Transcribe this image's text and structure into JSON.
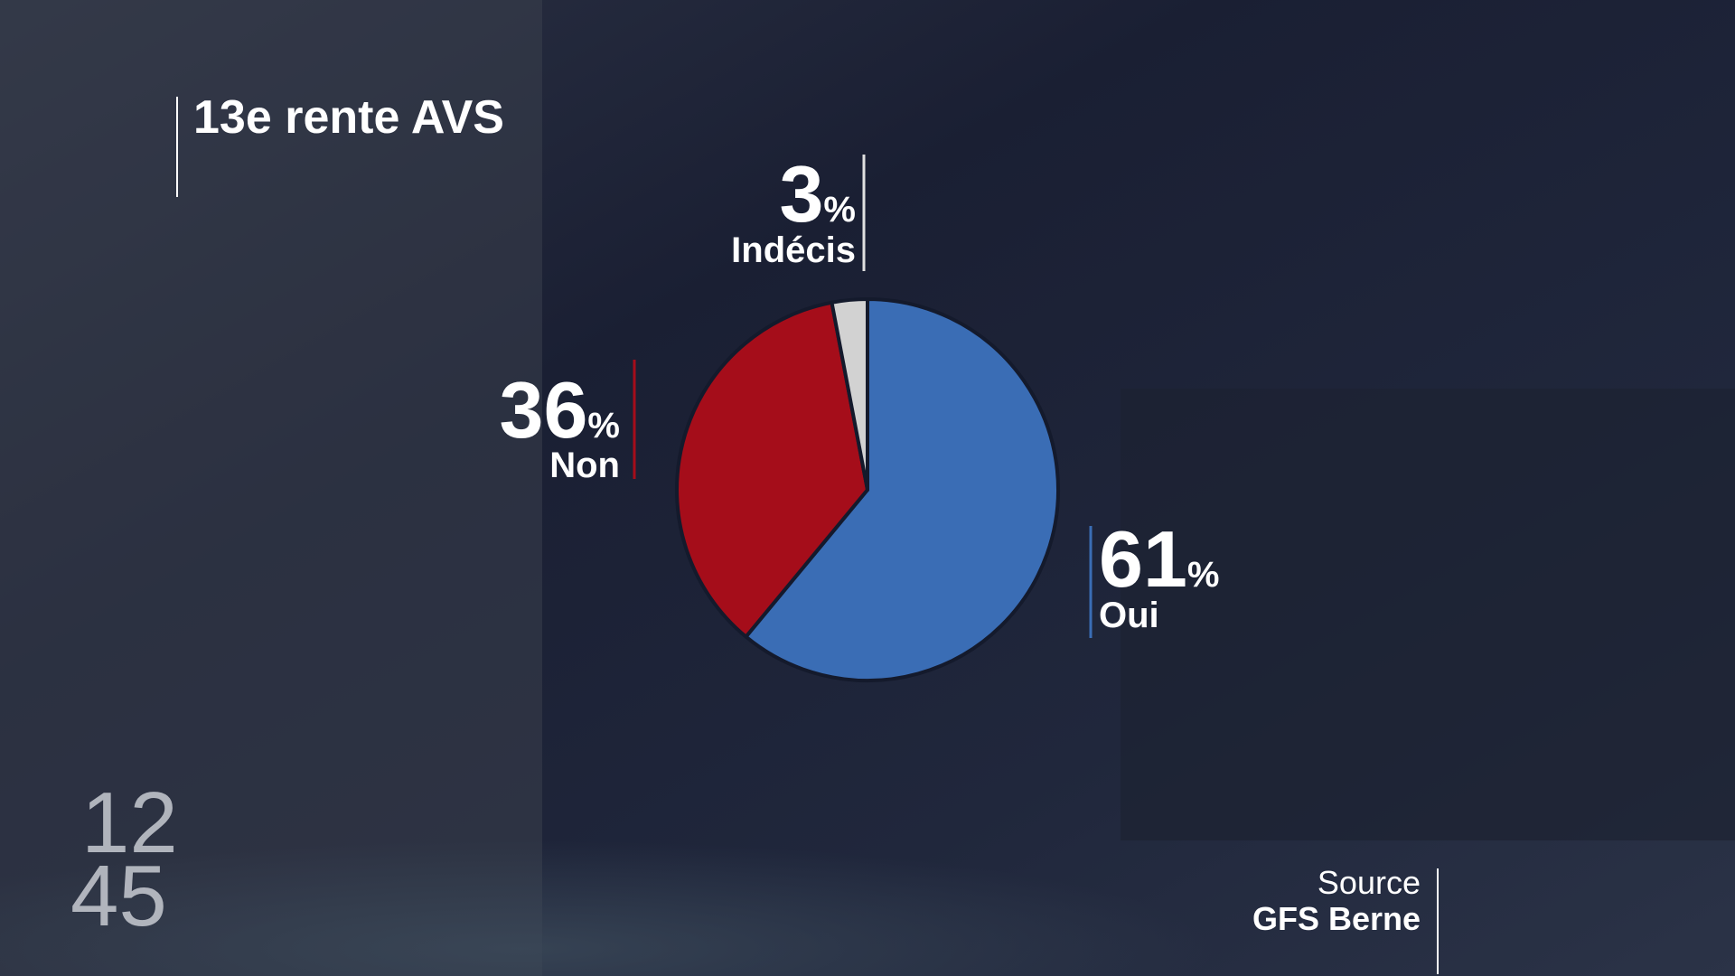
{
  "chart_data": {
    "type": "pie",
    "title": "13e rente AVS",
    "categories": [
      "Oui",
      "Non",
      "Indécis"
    ],
    "values": [
      61,
      36,
      3
    ],
    "unit": "%",
    "colors": [
      "#3a6db5",
      "#a50d1a",
      "#d2d2d2"
    ]
  },
  "source": {
    "label": "Source",
    "name": "GFS Berne"
  },
  "logo": {
    "top": "12",
    "bottom": "45"
  }
}
